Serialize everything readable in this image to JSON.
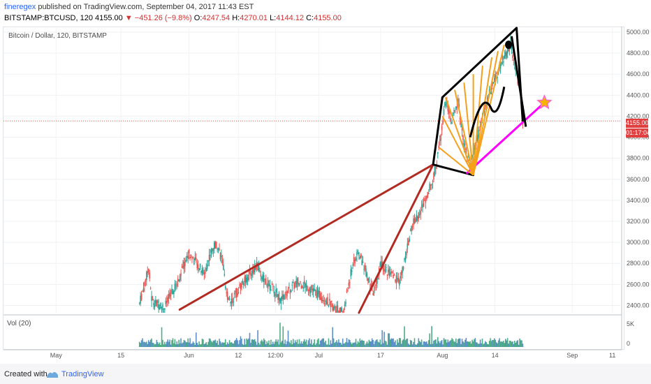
{
  "header": {
    "author": "fineregex",
    "published": " published on TradingView.com, September 04, 2017 11:43 EST",
    "symbol": "BITSTAMP:BTCUSD, 120",
    "price": "4155.00",
    "change": "▼ −451.26 (−9.8%)",
    "o_label": "O:",
    "o_value": "4247.54",
    "h_label": "H:",
    "h_value": "4270.01",
    "l_label": "L:",
    "l_value": "4144.12",
    "c_label": "C:",
    "c_value": "4155.00"
  },
  "chart_title": "Bitcoin / Dollar, 120, BITSTAMP",
  "volume_title": "Vol (20)",
  "price_tag": "4155.00",
  "countdown_tag": "01:17:04",
  "footer": {
    "created_with": "Created with",
    "brand": "TradingView"
  },
  "colors": {
    "up": "#26a69a",
    "down": "#ef5350",
    "trend_red": "#b22b22",
    "fan": "#f5a01a",
    "channel": "#000000",
    "magenta": "#ff00ff",
    "star": "#f5b400"
  },
  "chart_data": {
    "type": "candlestick",
    "title": "Bitcoin / Dollar, 120, BITSTAMP",
    "xlabel": "",
    "ylabel": "",
    "x_ticks": [
      "May",
      "15",
      "Jun",
      "12",
      "12:00",
      "Jul",
      "17",
      "Aug",
      "14",
      "Sep",
      "11"
    ],
    "y_ticks": [
      2400,
      2600,
      2800,
      3000,
      3200,
      3400,
      3600,
      3800,
      4000,
      4200,
      4400,
      4600,
      4800,
      5000
    ],
    "ylim": [
      2330,
      5040
    ],
    "volume_ticks": [
      "5K",
      "0"
    ],
    "last_price": 4155.0,
    "series": [
      {
        "name": "price",
        "values": [
          [
            0.22,
            2420
          ],
          [
            0.235,
            2760
          ],
          [
            0.24,
            2440
          ],
          [
            0.26,
            2380
          ],
          [
            0.28,
            2600
          ],
          [
            0.3,
            2900
          ],
          [
            0.31,
            2820
          ],
          [
            0.325,
            2700
          ],
          [
            0.335,
            2900
          ],
          [
            0.345,
            3000
          ],
          [
            0.355,
            2800
          ],
          [
            0.36,
            2500
          ],
          [
            0.37,
            2450
          ],
          [
            0.385,
            2600
          ],
          [
            0.4,
            2700
          ],
          [
            0.41,
            2780
          ],
          [
            0.42,
            2650
          ],
          [
            0.435,
            2560
          ],
          [
            0.45,
            2450
          ],
          [
            0.46,
            2520
          ],
          [
            0.475,
            2620
          ],
          [
            0.49,
            2590
          ],
          [
            0.505,
            2520
          ],
          [
            0.52,
            2460
          ],
          [
            0.535,
            2380
          ],
          [
            0.55,
            2330
          ],
          [
            0.565,
            2800
          ],
          [
            0.575,
            2900
          ],
          [
            0.585,
            2750
          ],
          [
            0.595,
            2560
          ],
          [
            0.6,
            2500
          ],
          [
            0.61,
            2800
          ],
          [
            0.625,
            2700
          ],
          [
            0.64,
            2620
          ],
          [
            0.65,
            2840
          ],
          [
            0.66,
            3150
          ],
          [
            0.675,
            3300
          ],
          [
            0.685,
            3450
          ],
          [
            0.695,
            3600
          ],
          [
            0.705,
            3900
          ],
          [
            0.715,
            4350
          ],
          [
            0.725,
            4150
          ],
          [
            0.735,
            4350
          ],
          [
            0.745,
            3950
          ],
          [
            0.755,
            3750
          ],
          [
            0.765,
            3950
          ],
          [
            0.775,
            4200
          ],
          [
            0.785,
            4400
          ],
          [
            0.795,
            4550
          ],
          [
            0.805,
            4700
          ],
          [
            0.815,
            4800
          ],
          [
            0.82,
            4900
          ],
          [
            0.825,
            4700
          ],
          [
            0.835,
            4500
          ],
          [
            0.84,
            4150
          ]
        ]
      }
    ],
    "drawings": [
      {
        "name": "red trendline 1",
        "points": [
          [
            0.285,
            2360
          ],
          [
            0.695,
            3740
          ]
        ]
      },
      {
        "name": "red trendline 2",
        "points": [
          [
            0.575,
            2330
          ],
          [
            0.695,
            3740
          ]
        ]
      },
      {
        "name": "black channel upper",
        "points": [
          [
            0.71,
            4380
          ],
          [
            0.83,
            5040
          ]
        ]
      },
      {
        "name": "black channel lower",
        "points": [
          [
            0.695,
            3740
          ],
          [
            0.76,
            3640
          ]
        ]
      },
      {
        "name": "magenta support",
        "points": [
          [
            0.75,
            3660
          ],
          [
            0.875,
            4330
          ]
        ]
      }
    ]
  }
}
